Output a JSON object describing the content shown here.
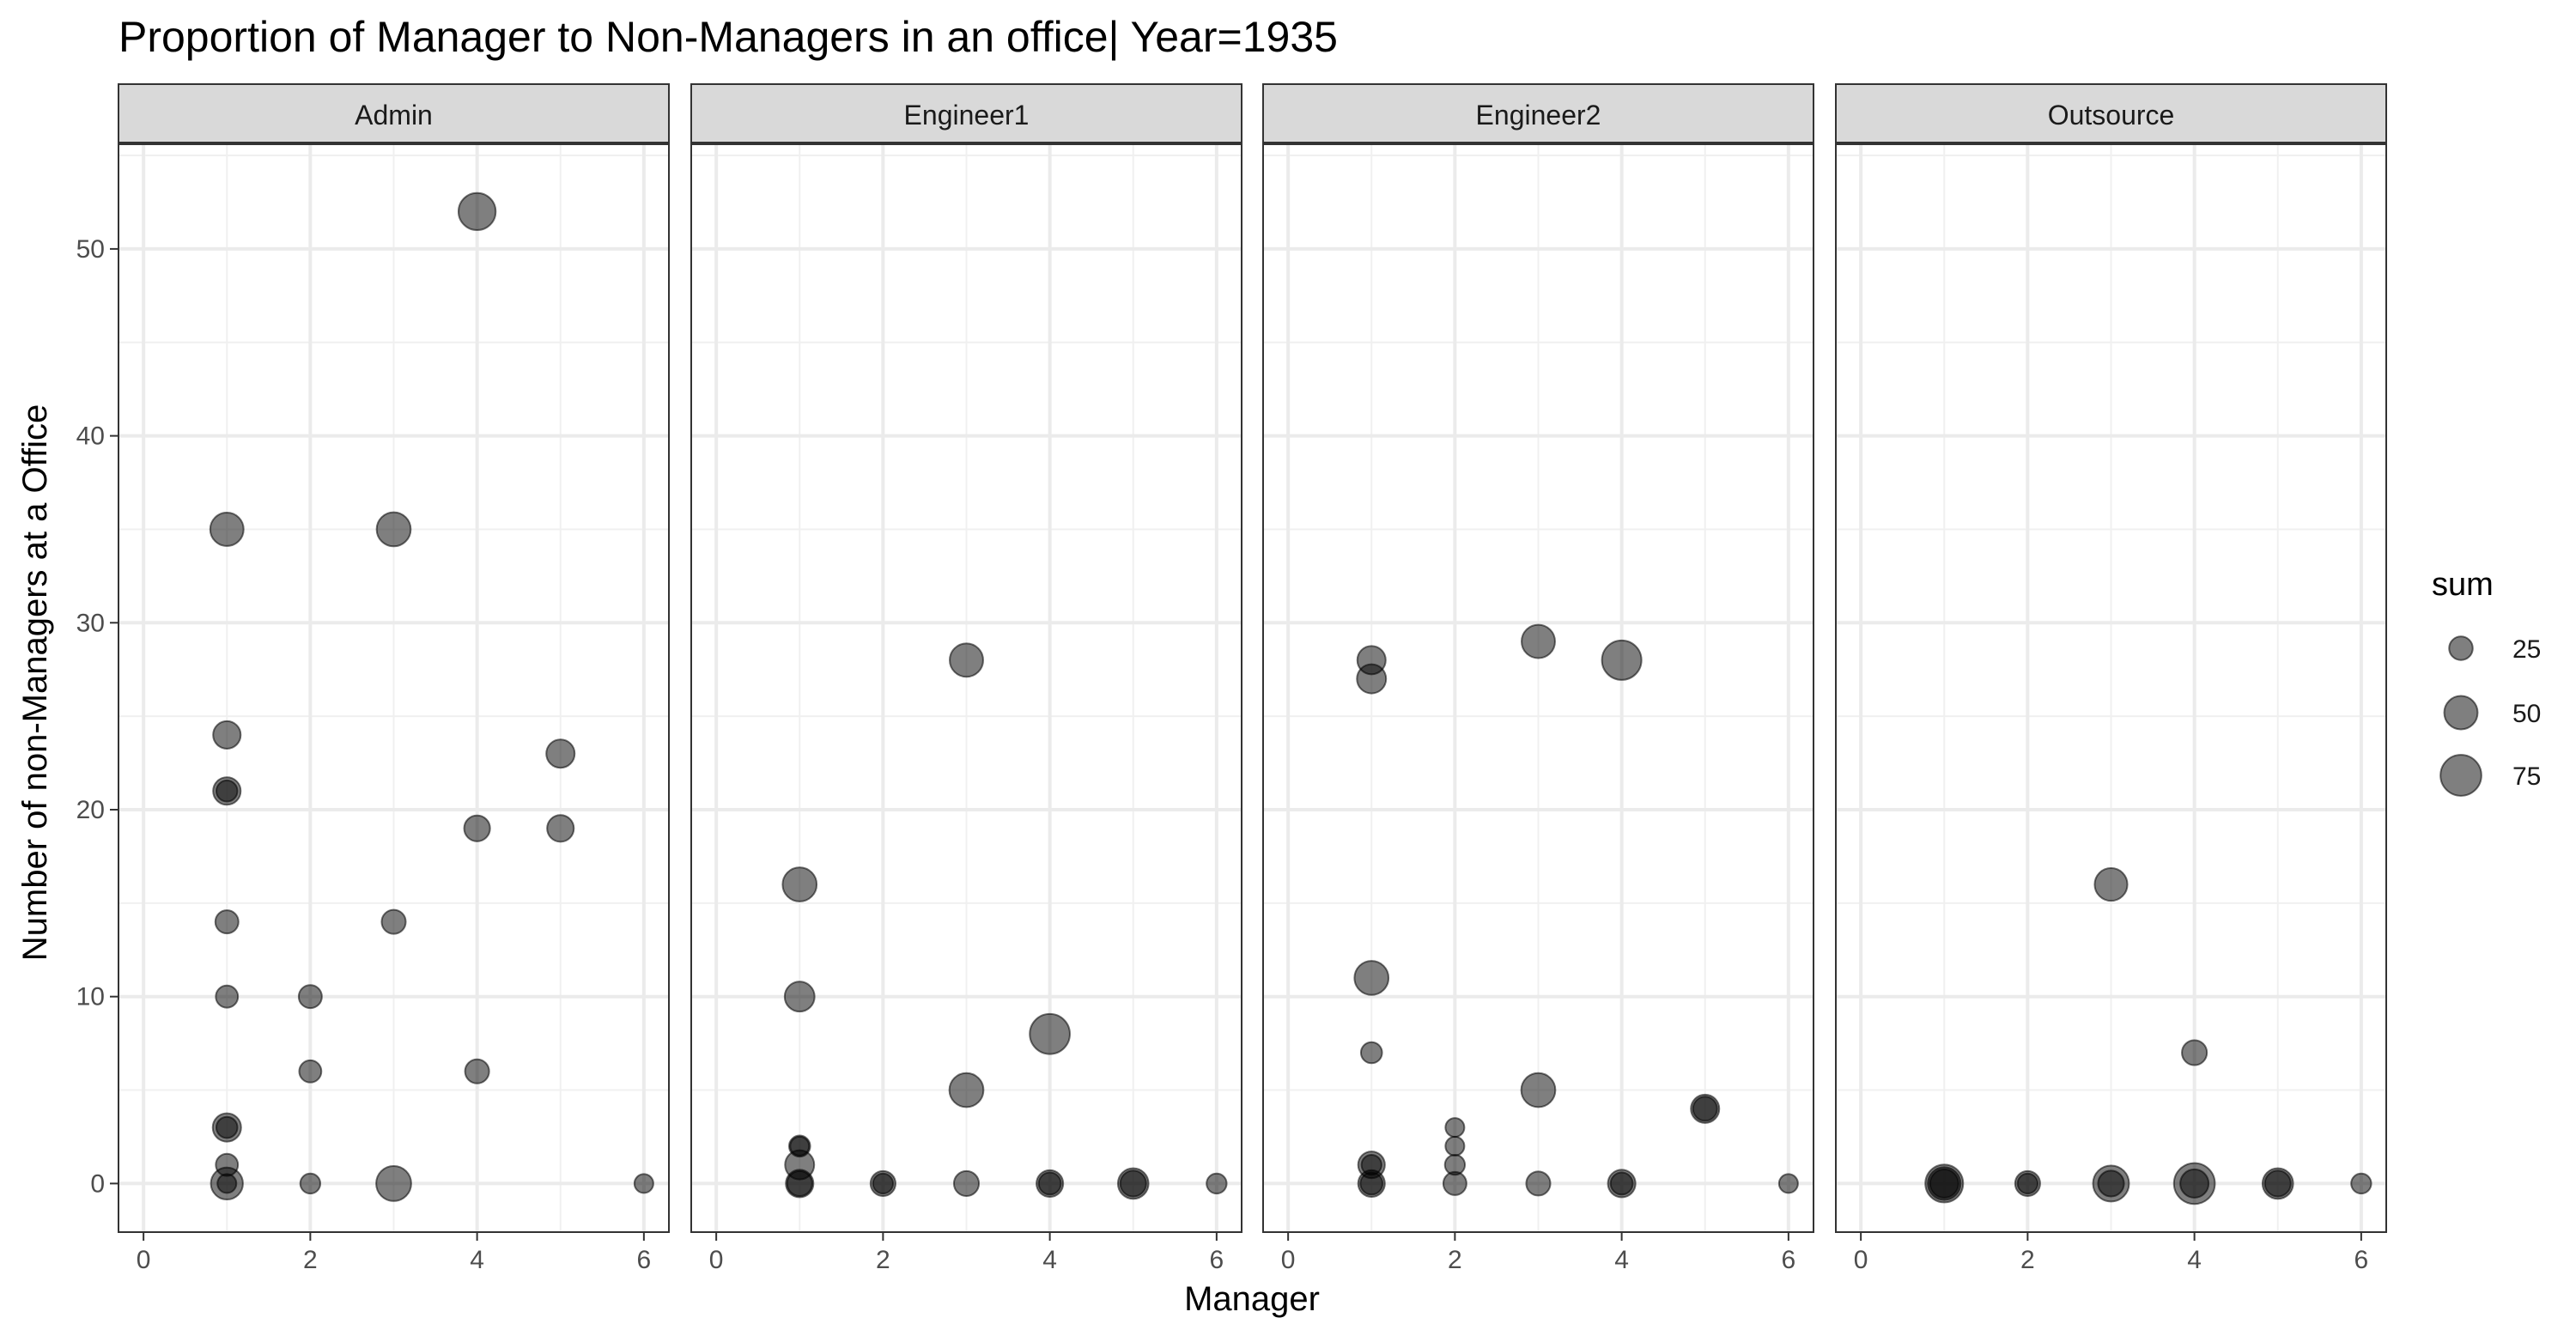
{
  "chart_data": {
    "type": "scatter",
    "title": "Proportion of Manager to Non-Managers in an office| Year=1935",
    "xlabel": "Manager",
    "ylabel": "Number of non-Managers at a Office",
    "xlim": [
      -0.3,
      6.3
    ],
    "ylim": [
      -2.6,
      55.6
    ],
    "x_ticks": [
      0,
      2,
      4,
      6
    ],
    "y_ticks": [
      0,
      10,
      20,
      30,
      40,
      50
    ],
    "grid": true,
    "point_color": "#000000",
    "point_opacity": 0.5,
    "size_legend": {
      "title": "sum",
      "position": "right",
      "values": [
        25,
        50,
        75
      ]
    },
    "facets": [
      {
        "name": "Admin",
        "points": [
          {
            "x": 1,
            "y": 35,
            "sum": 50
          },
          {
            "x": 1,
            "y": 24,
            "sum": 34
          },
          {
            "x": 1,
            "y": 21,
            "sum": 34
          },
          {
            "x": 1,
            "y": 21,
            "sum": 20
          },
          {
            "x": 1,
            "y": 14,
            "sum": 24
          },
          {
            "x": 1,
            "y": 10,
            "sum": 22
          },
          {
            "x": 1,
            "y": 3,
            "sum": 36
          },
          {
            "x": 1,
            "y": 3,
            "sum": 20
          },
          {
            "x": 1,
            "y": 1,
            "sum": 22
          },
          {
            "x": 1,
            "y": 0,
            "sum": 46
          },
          {
            "x": 1,
            "y": 0,
            "sum": 16
          },
          {
            "x": 2,
            "y": 10,
            "sum": 24
          },
          {
            "x": 2,
            "y": 6,
            "sum": 22
          },
          {
            "x": 2,
            "y": 0,
            "sum": 18
          },
          {
            "x": 3,
            "y": 35,
            "sum": 52
          },
          {
            "x": 3,
            "y": 14,
            "sum": 26
          },
          {
            "x": 3,
            "y": 0,
            "sum": 55
          },
          {
            "x": 4,
            "y": 52,
            "sum": 62
          },
          {
            "x": 4,
            "y": 19,
            "sum": 30
          },
          {
            "x": 4,
            "y": 6,
            "sum": 26
          },
          {
            "x": 5,
            "y": 23,
            "sum": 36
          },
          {
            "x": 5,
            "y": 19,
            "sum": 32
          },
          {
            "x": 6,
            "y": 0,
            "sum": 16
          }
        ]
      },
      {
        "name": "Engineer1",
        "points": [
          {
            "x": 1,
            "y": 16,
            "sum": 52
          },
          {
            "x": 1,
            "y": 10,
            "sum": 40
          },
          {
            "x": 1,
            "y": 2,
            "sum": 20
          },
          {
            "x": 1,
            "y": 2,
            "sum": 16
          },
          {
            "x": 1,
            "y": 1,
            "sum": 38
          },
          {
            "x": 1,
            "y": 0,
            "sum": 34
          },
          {
            "x": 1,
            "y": 0,
            "sum": 28
          },
          {
            "x": 2,
            "y": 0,
            "sum": 28
          },
          {
            "x": 2,
            "y": 0,
            "sum": 18
          },
          {
            "x": 3,
            "y": 28,
            "sum": 50
          },
          {
            "x": 3,
            "y": 5,
            "sum": 52
          },
          {
            "x": 3,
            "y": 0,
            "sum": 28
          },
          {
            "x": 4,
            "y": 8,
            "sum": 72
          },
          {
            "x": 4,
            "y": 0,
            "sum": 32
          },
          {
            "x": 4,
            "y": 0,
            "sum": 22
          },
          {
            "x": 5,
            "y": 0,
            "sum": 42
          },
          {
            "x": 5,
            "y": 0,
            "sum": 30
          },
          {
            "x": 6,
            "y": 0,
            "sum": 18
          }
        ]
      },
      {
        "name": "Engineer2",
        "points": [
          {
            "x": 1,
            "y": 28,
            "sum": 36
          },
          {
            "x": 1,
            "y": 27,
            "sum": 38
          },
          {
            "x": 1,
            "y": 11,
            "sum": 52
          },
          {
            "x": 1,
            "y": 7,
            "sum": 20
          },
          {
            "x": 1,
            "y": 1,
            "sum": 32
          },
          {
            "x": 1,
            "y": 1,
            "sum": 18
          },
          {
            "x": 1,
            "y": 0,
            "sum": 32
          },
          {
            "x": 1,
            "y": 0,
            "sum": 22
          },
          {
            "x": 2,
            "y": 3,
            "sum": 16
          },
          {
            "x": 2,
            "y": 2,
            "sum": 16
          },
          {
            "x": 2,
            "y": 1,
            "sum": 18
          },
          {
            "x": 2,
            "y": 0,
            "sum": 24
          },
          {
            "x": 3,
            "y": 29,
            "sum": 50
          },
          {
            "x": 3,
            "y": 5,
            "sum": 52
          },
          {
            "x": 3,
            "y": 0,
            "sum": 26
          },
          {
            "x": 4,
            "y": 28,
            "sum": 70
          },
          {
            "x": 4,
            "y": 0,
            "sum": 34
          },
          {
            "x": 4,
            "y": 0,
            "sum": 22
          },
          {
            "x": 5,
            "y": 4,
            "sum": 36
          },
          {
            "x": 5,
            "y": 4,
            "sum": 26
          },
          {
            "x": 6,
            "y": 0,
            "sum": 16
          }
        ]
      },
      {
        "name": "Outsource",
        "points": [
          {
            "x": 1,
            "y": 0,
            "sum": 64
          },
          {
            "x": 1,
            "y": 0,
            "sum": 48
          },
          {
            "x": 1,
            "y": 0,
            "sum": 36
          },
          {
            "x": 2,
            "y": 0,
            "sum": 28
          },
          {
            "x": 2,
            "y": 0,
            "sum": 18
          },
          {
            "x": 3,
            "y": 16,
            "sum": 48
          },
          {
            "x": 3,
            "y": 0,
            "sum": 58
          },
          {
            "x": 3,
            "y": 0,
            "sum": 30
          },
          {
            "x": 4,
            "y": 7,
            "sum": 28
          },
          {
            "x": 4,
            "y": 0,
            "sum": 75
          },
          {
            "x": 4,
            "y": 0,
            "sum": 36
          },
          {
            "x": 5,
            "y": 0,
            "sum": 42
          },
          {
            "x": 5,
            "y": 0,
            "sum": 30
          },
          {
            "x": 6,
            "y": 0,
            "sum": 18
          }
        ]
      }
    ]
  }
}
